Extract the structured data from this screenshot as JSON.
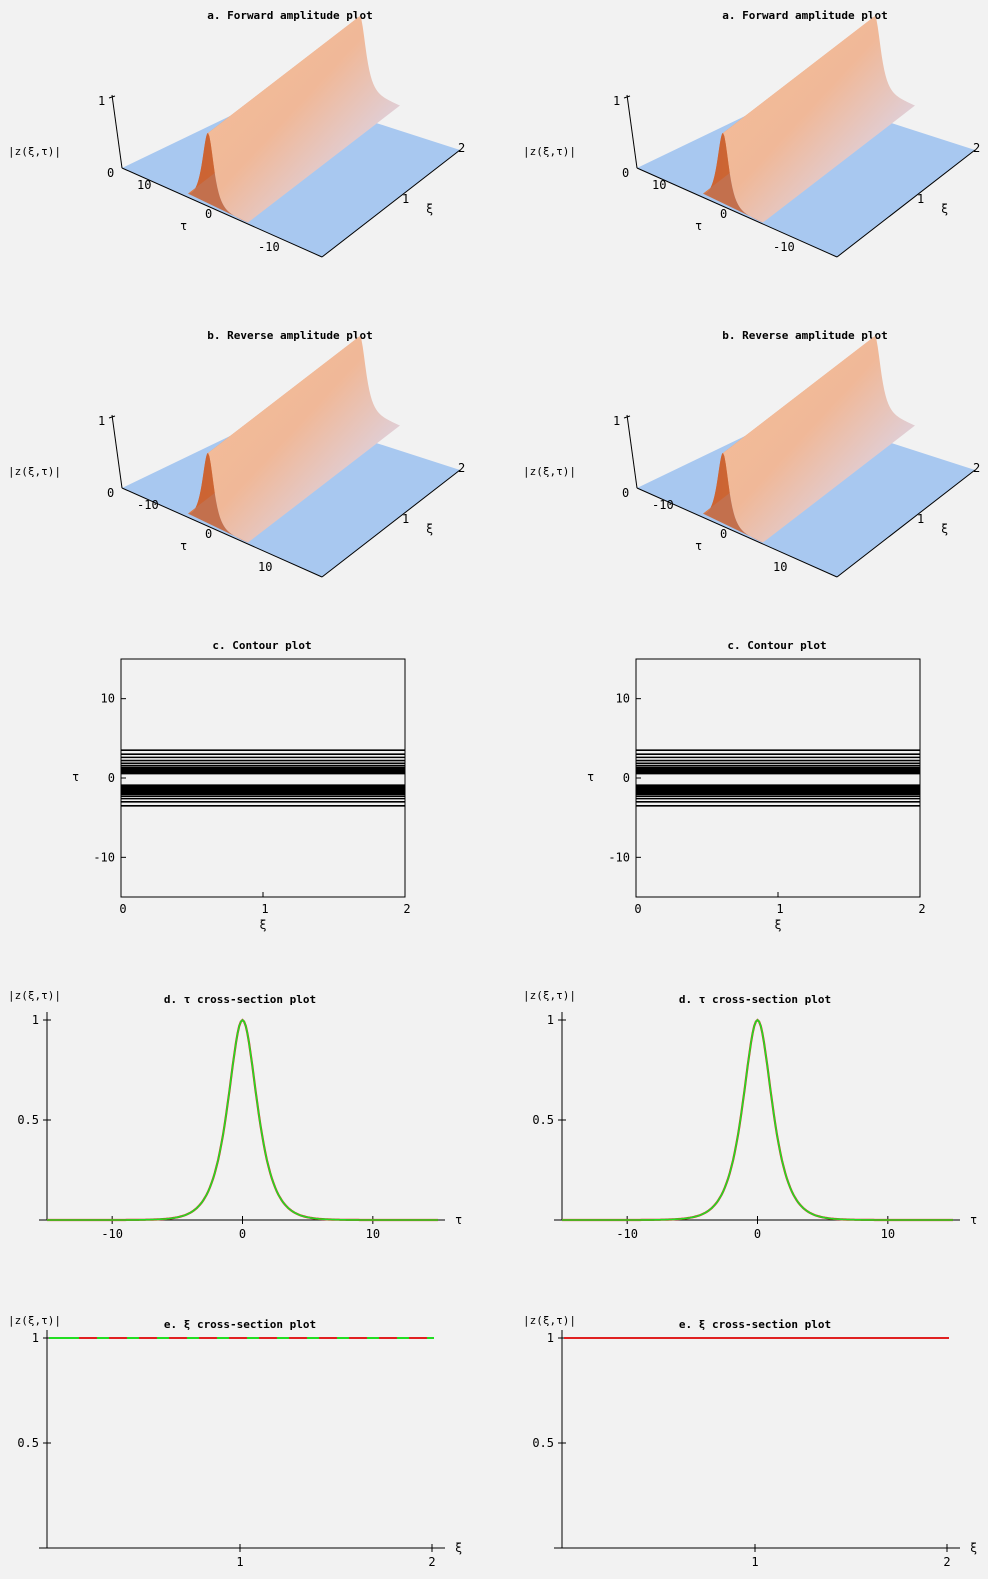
{
  "symbols": {
    "z_label": "|z(ξ,τ)|",
    "tau": "τ",
    "xi": "ξ"
  },
  "colors": {
    "surface_low": "#a8c8f0",
    "surface_high": "#f2b48a",
    "surface_peak": "#e8885a",
    "surface_dark": "#c86030",
    "red_line": "#e02020",
    "green_line": "#22dd22",
    "contour": "#000000",
    "background": "#f2f2f2"
  },
  "columns": [
    {
      "forward": {
        "title": "a. Forward amplitude plot",
        "z_ticks": [
          "0",
          "1"
        ],
        "tau_ticks": [
          "10",
          "0",
          "-10"
        ],
        "xi_ticks": [
          "1",
          "2"
        ]
      },
      "reverse": {
        "title": "b. Reverse amplitude plot",
        "z_ticks": [
          "0",
          "1"
        ],
        "tau_ticks": [
          "-10",
          "0",
          "10"
        ],
        "xi_ticks": [
          "1",
          "2"
        ]
      },
      "contour": {
        "title": "c. Contour plot",
        "x_ticks": [
          "0",
          "1",
          "2"
        ],
        "y_ticks": [
          "10",
          "0",
          "-10"
        ]
      },
      "tau_section": {
        "title": "d. τ cross-section plot",
        "x_ticks": [
          "-10",
          "0",
          "10"
        ],
        "y_ticks": [
          "1",
          "0.5"
        ]
      },
      "xi_section": {
        "title": "e. ξ cross-section plot",
        "x_ticks": [
          "1",
          "2"
        ],
        "y_ticks": [
          "1",
          "0.5"
        ],
        "green_dashed": true
      }
    },
    {
      "forward": {
        "title": "a. Forward amplitude plot",
        "z_ticks": [
          "0",
          "1"
        ],
        "tau_ticks": [
          "10",
          "0",
          "-10"
        ],
        "xi_ticks": [
          "1",
          "2"
        ]
      },
      "reverse": {
        "title": "b. Reverse amplitude plot",
        "z_ticks": [
          "0",
          "1"
        ],
        "tau_ticks": [
          "-10",
          "0",
          "10"
        ],
        "xi_ticks": [
          "1",
          "2"
        ]
      },
      "contour": {
        "title": "c. Contour plot",
        "x_ticks": [
          "0",
          "1",
          "2"
        ],
        "y_ticks": [
          "10",
          "0",
          "-10"
        ]
      },
      "tau_section": {
        "title": "d. τ cross-section plot",
        "x_ticks": [
          "-10",
          "0",
          "10"
        ],
        "y_ticks": [
          "1",
          "0.5"
        ]
      },
      "xi_section": {
        "title": "e. ξ cross-section plot",
        "x_ticks": [
          "1",
          "2"
        ],
        "y_ticks": [
          "1",
          "0.5"
        ],
        "green_dashed": false
      }
    }
  ],
  "chart_data": [
    {
      "type": "surface",
      "title": "a. Forward amplitude plot",
      "function": "|z| = sech(τ)",
      "xlabel": "ξ",
      "ylabel": "τ",
      "zlabel": "|z(ξ,τ)|",
      "xlim": [
        0,
        2
      ],
      "ylim": [
        -15,
        15
      ],
      "zlim": [
        0,
        1
      ]
    },
    {
      "type": "surface",
      "title": "b. Reverse amplitude plot",
      "function": "|z| = sech(τ)",
      "xlabel": "ξ",
      "ylabel": "τ",
      "zlabel": "|z(ξ,τ)|",
      "xlim": [
        0,
        2
      ],
      "ylim": [
        -15,
        15
      ],
      "zlim": [
        0,
        1
      ]
    },
    {
      "type": "contour",
      "title": "c. Contour plot",
      "xlabel": "ξ",
      "ylabel": "τ",
      "xlim": [
        0,
        2
      ],
      "ylim": [
        -15,
        15
      ],
      "contour_tau_levels": [
        -3.5,
        -3.0,
        -2.6,
        -2.3,
        -2.05,
        -1.85,
        -1.7,
        -1.55,
        -1.42,
        -1.3,
        -1.2,
        -1.1,
        -1.0,
        -0.9,
        0.55,
        0.68,
        0.82,
        0.95,
        1.1,
        1.3,
        1.55,
        1.85,
        2.2,
        2.6,
        3.0,
        3.5
      ]
    },
    {
      "type": "line",
      "title": "d. τ cross-section plot",
      "xlabel": "τ",
      "ylabel": "|z(ξ,τ)|",
      "xlim": [
        -15,
        15
      ],
      "ylim": [
        0,
        1
      ],
      "x": [
        -15,
        -10,
        -6,
        -4,
        -3,
        -2,
        -1.5,
        -1,
        -0.5,
        0,
        0.5,
        1,
        1.5,
        2,
        3,
        4,
        6,
        10,
        15
      ],
      "series": [
        {
          "name": "",
          "color": "red",
          "y": [
            0,
            0,
            0.005,
            0.037,
            0.099,
            0.266,
            0.425,
            0.648,
            0.887,
            1,
            0.887,
            0.648,
            0.425,
            0.266,
            0.099,
            0.037,
            0.005,
            0,
            0
          ]
        },
        {
          "name": "",
          "color": "green",
          "y": [
            0,
            0,
            0.005,
            0.037,
            0.099,
            0.266,
            0.425,
            0.648,
            0.887,
            1,
            0.887,
            0.648,
            0.425,
            0.266,
            0.099,
            0.037,
            0.005,
            0,
            0
          ]
        }
      ]
    },
    {
      "type": "line",
      "title": "e. ξ cross-section plot",
      "xlabel": "ξ",
      "ylabel": "|z(ξ,τ)|",
      "xlim": [
        0,
        2
      ],
      "ylim": [
        0,
        1
      ],
      "x": [
        0,
        2
      ],
      "series": [
        {
          "name": "",
          "color": "red",
          "y": [
            1,
            1
          ]
        },
        {
          "name": "",
          "color": "green",
          "y": [
            1,
            1
          ]
        }
      ]
    }
  ]
}
